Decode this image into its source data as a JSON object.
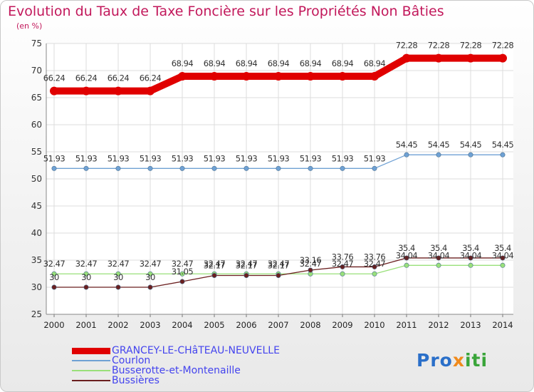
{
  "title": "Evolution du Taux de Taxe Foncière sur les Propriétés Non Bâties",
  "subtitle": "(en %)",
  "logo": {
    "part1": "Pro",
    "part2": "x",
    "part3": "iti"
  },
  "chart_data": {
    "type": "line",
    "title": "Evolution du Taux de Taxe Foncière sur les Propriétés Non Bâties",
    "ylabel": "(en %)",
    "xlabel": "",
    "ylim": [
      25,
      75
    ],
    "yticks": [
      25,
      30,
      35,
      40,
      45,
      50,
      55,
      60,
      65,
      70,
      75
    ],
    "x": [
      "2000",
      "2001",
      "2002",
      "2003",
      "2004",
      "2005",
      "2006",
      "2007",
      "2008",
      "2009",
      "2010",
      "2011",
      "2012",
      "2013",
      "2014"
    ],
    "grid": true,
    "legend_position": "bottom",
    "series": [
      {
        "name": "GRANCEY-LE-CHâTEAU-NEUVELLE",
        "color": "#e00000",
        "line_width": 10,
        "marker": 6,
        "values": [
          66.24,
          66.24,
          66.24,
          66.24,
          68.94,
          68.94,
          68.94,
          68.94,
          68.94,
          68.94,
          68.94,
          72.28,
          72.28,
          72.28,
          72.28
        ],
        "labels": [
          "66.24",
          "66.24",
          "66.24",
          "66.24",
          "68.94",
          "68.94",
          "68.94",
          "68.94",
          "68.94",
          "68.94",
          "68.94",
          "72.28",
          "72.28",
          "72.28",
          "72.28"
        ]
      },
      {
        "name": "Courlon",
        "color": "#6fa1d4",
        "line_width": 1.3,
        "marker": 3.2,
        "values": [
          51.93,
          51.93,
          51.93,
          51.93,
          51.93,
          51.93,
          51.93,
          51.93,
          51.93,
          51.93,
          51.93,
          54.45,
          54.45,
          54.45,
          54.45
        ],
        "labels": [
          "51.93",
          "51.93",
          "51.93",
          "51.93",
          "51.93",
          "51.93",
          "51.93",
          "51.93",
          "51.93",
          "51.93",
          "51.93",
          "54.45",
          "54.45",
          "54.45",
          "54.45"
        ]
      },
      {
        "name": "Busserotte-et-Montenaille",
        "color": "#99e07a",
        "line_width": 1.3,
        "marker": 3.2,
        "values": [
          32.47,
          32.47,
          32.47,
          32.47,
          32.47,
          32.47,
          32.47,
          32.47,
          32.47,
          32.47,
          32.47,
          34.04,
          34.04,
          34.04,
          34.04
        ],
        "labels": [
          "32.47",
          "32.47",
          "32.47",
          "32.47",
          "32.47",
          "32.47",
          "32.47",
          "32.47",
          "32.47",
          "32.47",
          "32.47",
          "34.04",
          "34.04",
          "34.04",
          "34.04"
        ]
      },
      {
        "name": "Bussières",
        "color": "#6b1f1f",
        "line_width": 1.3,
        "marker": 3.2,
        "values": [
          30,
          30,
          30,
          30,
          31.05,
          32.17,
          32.17,
          32.17,
          33.16,
          33.76,
          33.76,
          35.4,
          35.4,
          35.4,
          35.4
        ],
        "labels": [
          "30",
          "30",
          "30",
          "30",
          "31.05",
          "32.17",
          "32.17",
          "32.17",
          "33.16",
          "33.76",
          "33.76",
          "35.4",
          "35.4",
          "35.4",
          "35.4"
        ]
      }
    ]
  }
}
